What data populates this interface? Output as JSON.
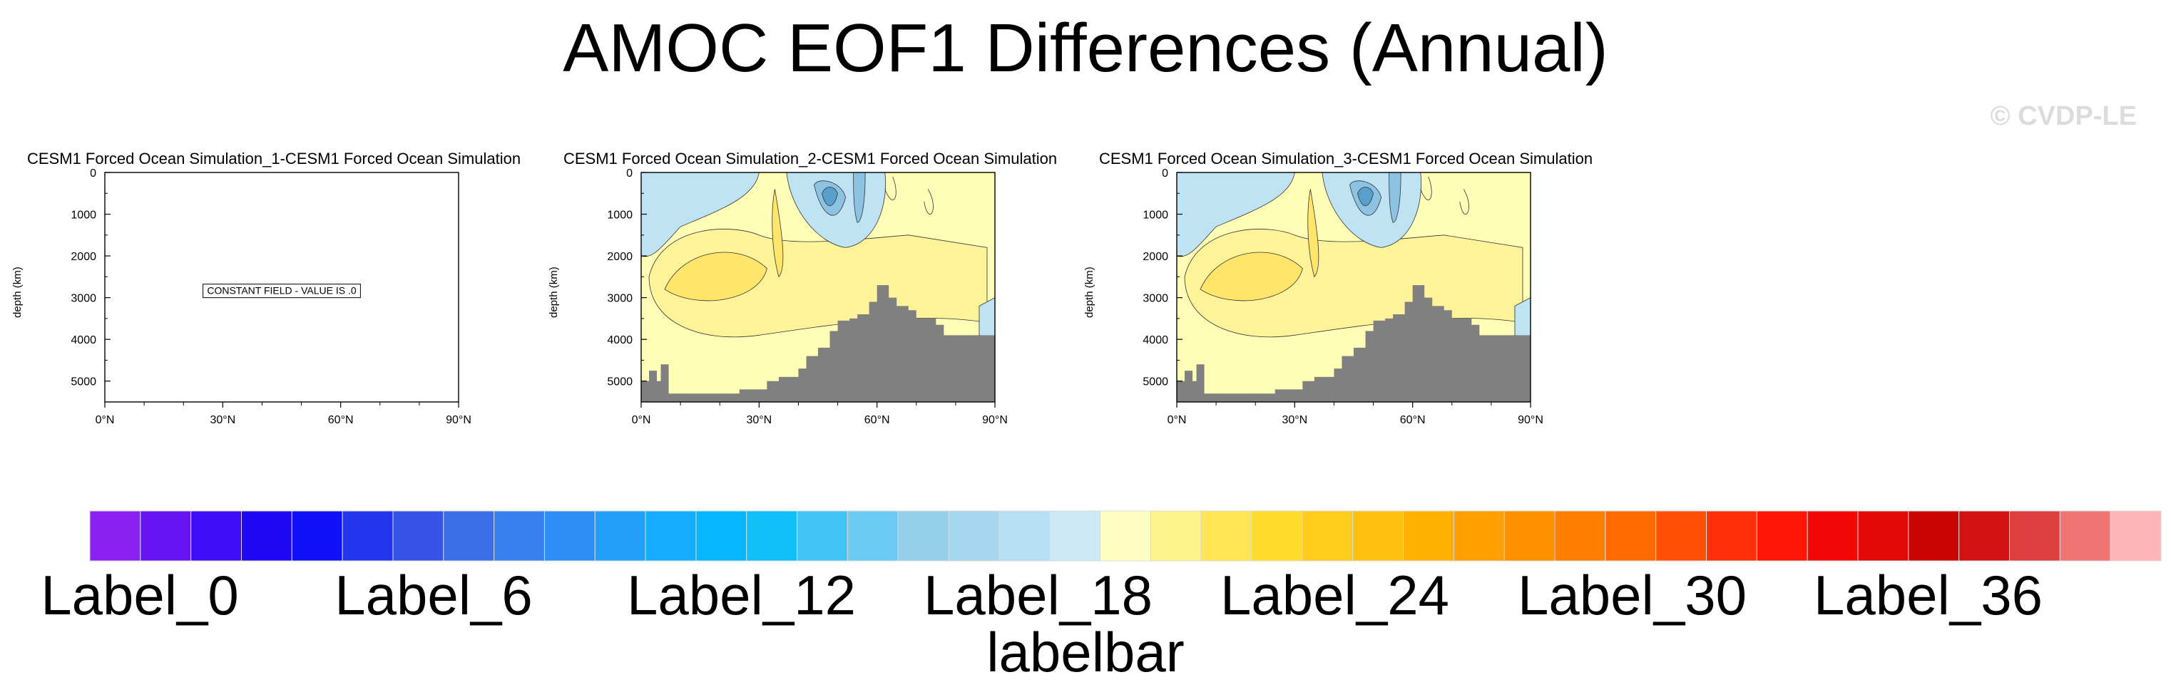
{
  "title": "AMOC EOF1 Differences (Annual)",
  "watermark": "© CVDP-LE",
  "colors": {
    "negative_strong": "#5aa0cd",
    "negative_mid": "#8cc3e3",
    "negative_light": "#bfe3f2",
    "positive_light": "#fffdb6",
    "positive_mid": "#fff39a",
    "positive_strong": "#ffe56a",
    "land": "#808080",
    "contour": "#333333"
  },
  "panels": [
    {
      "title": "CESM1 Forced Ocean Simulation_1-CESM1 Forced Ocean Simulation",
      "ylabel": "depth (km)",
      "constant_message": "CONSTANT FIELD - VALUE IS .0",
      "has_field": false
    },
    {
      "title": "CESM1 Forced Ocean Simulation_2-CESM1 Forced Ocean Simulation",
      "ylabel": "depth (km)",
      "constant_message": "",
      "has_field": true
    },
    {
      "title": "CESM1 Forced Ocean Simulation_3-CESM1 Forced Ocean Simulation",
      "ylabel": "depth (km)",
      "constant_message": "",
      "has_field": true
    }
  ],
  "labelbar": {
    "title": "labelbar",
    "labels": [
      "Label_0",
      "Label_6",
      "Label_12",
      "Label_18",
      "Label_24",
      "Label_30",
      "Label_36"
    ],
    "colors": [
      "#8a1ff2",
      "#6614f2",
      "#3d0df5",
      "#1f07f5",
      "#0f10f7",
      "#2235ee",
      "#3553e5",
      "#3a6de6",
      "#3880ef",
      "#2e8ef5",
      "#209ef8",
      "#14acfb",
      "#06b7fd",
      "#11bef8",
      "#42c4f4",
      "#6bcbf2",
      "#94cfe9",
      "#a5d7ef",
      "#b6dff3",
      "#cde9f8",
      "#fefec2",
      "#fff38c",
      "#ffe555",
      "#ffdb2e",
      "#ffcc1c",
      "#ffc00f",
      "#ffb000",
      "#ffa000",
      "#ff9000",
      "#ff7e00",
      "#ff6a00",
      "#ff4f05",
      "#ff2f08",
      "#ff1508",
      "#f40707",
      "#e40909",
      "#cd0404",
      "#d11212",
      "#de4040",
      "#ef7474",
      "#ffb6b6"
    ]
  },
  "chart_data": [
    {
      "type": "heatmap",
      "title": "CESM1 Forced Ocean Simulation_1-CESM1 Forced Ocean Simulation",
      "ylabel": "depth (km)",
      "xlim": [
        0,
        90
      ],
      "ylim": [
        5500,
        0
      ],
      "x_ticks": [
        "0°N",
        "30°N",
        "60°N",
        "90°N"
      ],
      "y_ticks": [
        "0",
        "1000",
        "2000",
        "3000",
        "4000",
        "5000"
      ],
      "field": "constant",
      "value": 0
    },
    {
      "type": "heatmap",
      "title": "CESM1 Forced Ocean Simulation_2-CESM1 Forced Ocean Simulation",
      "ylabel": "depth (km)",
      "xlim": [
        0,
        90
      ],
      "ylim": [
        5500,
        0
      ],
      "x_ticks": [
        "0°N",
        "30°N",
        "60°N",
        "90°N"
      ],
      "y_ticks": [
        "0",
        "1000",
        "2000",
        "3000",
        "4000",
        "5000"
      ],
      "bathymetry": {
        "lat": [
          0,
          2,
          4,
          5,
          7,
          10,
          15,
          20,
          25,
          30,
          32,
          35,
          40,
          42,
          45,
          48,
          50,
          53,
          55,
          58,
          60,
          63,
          65,
          68,
          70,
          72,
          75,
          77,
          80,
          83,
          85,
          88,
          90
        ],
        "depth": [
          5000,
          4750,
          5000,
          4600,
          5300,
          5300,
          5300,
          5300,
          5200,
          5200,
          5000,
          4900,
          4700,
          4400,
          4200,
          3800,
          3550,
          3500,
          3400,
          3100,
          2700,
          3000,
          3200,
          3300,
          3500,
          3500,
          3650,
          3900,
          3900,
          3900,
          3900,
          3900,
          3900
        ]
      }
    },
    {
      "type": "heatmap",
      "title": "CESM1 Forced Ocean Simulation_3-CESM1 Forced Ocean Simulation",
      "ylabel": "depth (km)",
      "xlim": [
        0,
        90
      ],
      "ylim": [
        5500,
        0
      ],
      "x_ticks": [
        "0°N",
        "30°N",
        "60°N",
        "90°N"
      ],
      "y_ticks": [
        "0",
        "1000",
        "2000",
        "3000",
        "4000",
        "5000"
      ],
      "bathymetry": {
        "lat": [
          0,
          2,
          4,
          5,
          7,
          10,
          15,
          20,
          25,
          30,
          32,
          35,
          40,
          42,
          45,
          48,
          50,
          53,
          55,
          58,
          60,
          63,
          65,
          68,
          70,
          72,
          75,
          77,
          80,
          83,
          85,
          88,
          90
        ],
        "depth": [
          5000,
          4750,
          5000,
          4600,
          5300,
          5300,
          5300,
          5300,
          5200,
          5200,
          5000,
          4900,
          4700,
          4400,
          4200,
          3800,
          3550,
          3500,
          3400,
          3100,
          2700,
          3000,
          3200,
          3300,
          3500,
          3500,
          3650,
          3900,
          3900,
          3900,
          3900,
          3900,
          3900
        ]
      }
    }
  ]
}
